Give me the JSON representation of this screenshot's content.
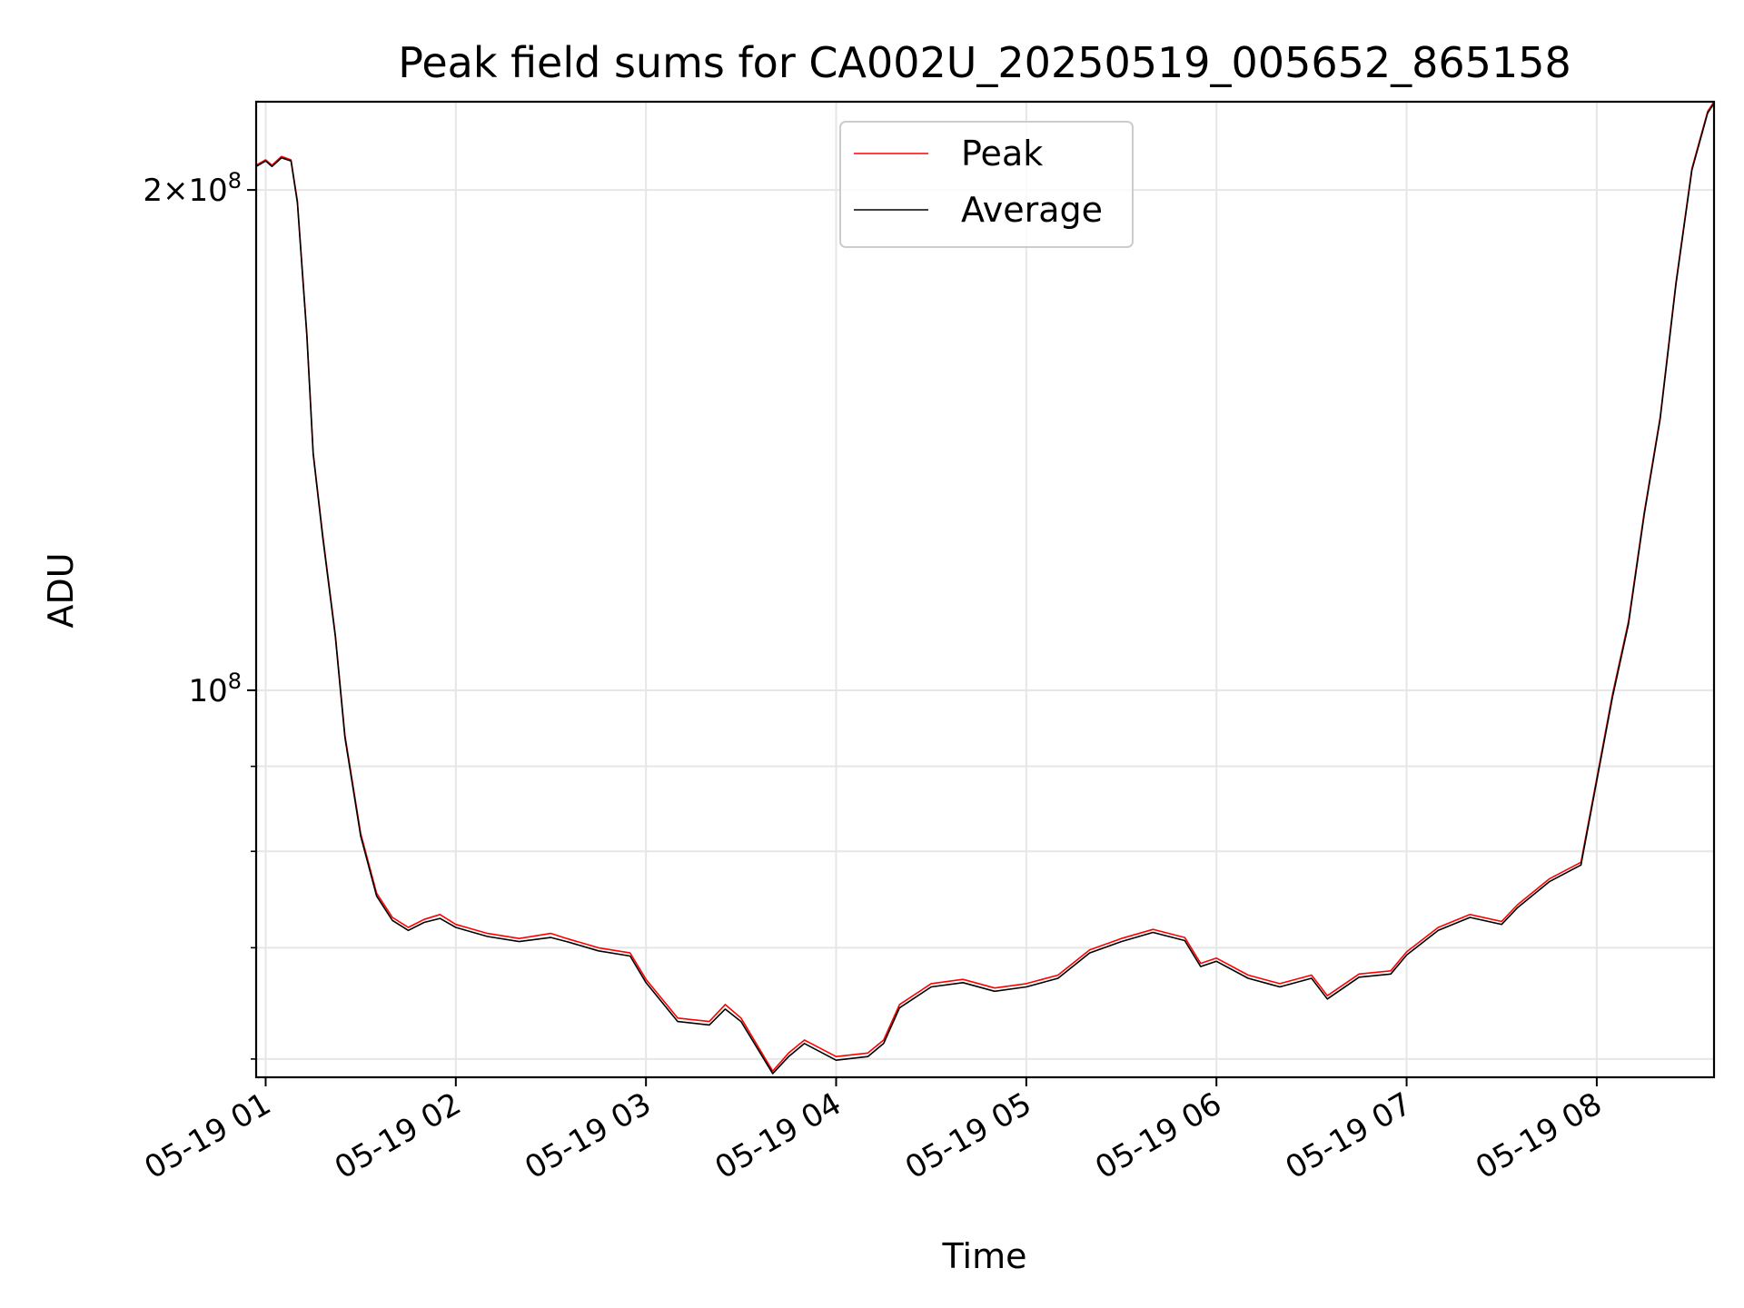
{
  "chart_data": {
    "type": "line",
    "title": "Peak field sums for CA002U_20250519_005652_865158",
    "xlabel": "Time",
    "ylabel": "ADU",
    "x_ticks": [
      "05-19 01",
      "05-19 02",
      "05-19 03",
      "05-19 04",
      "05-19 05",
      "05-19 06",
      "05-19 07",
      "05-19 08"
    ],
    "y_scale": "log",
    "y_ticks": [
      {
        "value": 100000000,
        "mantissa": "",
        "exponent": "8"
      },
      {
        "value": 200000000,
        "mantissa": "2",
        "exponent": "8"
      }
    ],
    "xlim": [
      "2025-05-19 00:57",
      "2025-05-19 08:37"
    ],
    "ylim": [
      58500000,
      226000000
    ],
    "grid": true,
    "legend_position": "upper center",
    "series": [
      {
        "name": "Peak",
        "color": "#ff0000",
        "points": [
          [
            "2025-05-19 00:57",
            207000000
          ],
          [
            "2025-05-19 01:00",
            208500000
          ],
          [
            "2025-05-19 01:02",
            207000000
          ],
          [
            "2025-05-19 01:05",
            209500000
          ],
          [
            "2025-05-19 01:08",
            208500000
          ],
          [
            "2025-05-19 01:10",
            197000000
          ],
          [
            "2025-05-19 01:13",
            164000000
          ],
          [
            "2025-05-19 01:15",
            139000000
          ],
          [
            "2025-05-19 01:18",
            124000000
          ],
          [
            "2025-05-19 01:22",
            108000000
          ],
          [
            "2025-05-19 01:25",
            94000000
          ],
          [
            "2025-05-19 01:30",
            82000000
          ],
          [
            "2025-05-19 01:35",
            75500000
          ],
          [
            "2025-05-19 01:40",
            73000000
          ],
          [
            "2025-05-19 01:45",
            72000000
          ],
          [
            "2025-05-19 01:50",
            72800000
          ],
          [
            "2025-05-19 01:55",
            73300000
          ],
          [
            "2025-05-19 02:00",
            72300000
          ],
          [
            "2025-05-19 02:10",
            71400000
          ],
          [
            "2025-05-19 02:20",
            70900000
          ],
          [
            "2025-05-19 02:30",
            71400000
          ],
          [
            "2025-05-19 02:35",
            70900000
          ],
          [
            "2025-05-19 02:45",
            70000000
          ],
          [
            "2025-05-19 02:55",
            69500000
          ],
          [
            "2025-05-19 03:00",
            67000000
          ],
          [
            "2025-05-19 03:10",
            63500000
          ],
          [
            "2025-05-19 03:20",
            63200000
          ],
          [
            "2025-05-19 03:25",
            64700000
          ],
          [
            "2025-05-19 03:30",
            63500000
          ],
          [
            "2025-05-19 03:40",
            59000000
          ],
          [
            "2025-05-19 03:45",
            60500000
          ],
          [
            "2025-05-19 03:50",
            61600000
          ],
          [
            "2025-05-19 04:00",
            60200000
          ],
          [
            "2025-05-19 04:10",
            60500000
          ],
          [
            "2025-05-19 04:15",
            61600000
          ],
          [
            "2025-05-19 04:20",
            64700000
          ],
          [
            "2025-05-19 04:30",
            66600000
          ],
          [
            "2025-05-19 04:40",
            67000000
          ],
          [
            "2025-05-19 04:50",
            66200000
          ],
          [
            "2025-05-19 05:00",
            66600000
          ],
          [
            "2025-05-19 05:10",
            67400000
          ],
          [
            "2025-05-19 05:20",
            69800000
          ],
          [
            "2025-05-19 05:30",
            70900000
          ],
          [
            "2025-05-19 05:40",
            71800000
          ],
          [
            "2025-05-19 05:50",
            71000000
          ],
          [
            "2025-05-19 05:55",
            68500000
          ],
          [
            "2025-05-19 06:00",
            69000000
          ],
          [
            "2025-05-19 06:10",
            67400000
          ],
          [
            "2025-05-19 06:20",
            66600000
          ],
          [
            "2025-05-19 06:30",
            67400000
          ],
          [
            "2025-05-19 06:35",
            65500000
          ],
          [
            "2025-05-19 06:45",
            67500000
          ],
          [
            "2025-05-19 06:55",
            67800000
          ],
          [
            "2025-05-19 07:00",
            69600000
          ],
          [
            "2025-05-19 07:10",
            72000000
          ],
          [
            "2025-05-19 07:20",
            73300000
          ],
          [
            "2025-05-19 07:30",
            72600000
          ],
          [
            "2025-05-19 07:35",
            74300000
          ],
          [
            "2025-05-19 07:45",
            77000000
          ],
          [
            "2025-05-19 07:55",
            78800000
          ],
          [
            "2025-05-19 08:00",
            88500000
          ],
          [
            "2025-05-19 08:05",
            99500000
          ],
          [
            "2025-05-19 08:10",
            110000000
          ],
          [
            "2025-05-19 08:15",
            128000000
          ],
          [
            "2025-05-19 08:20",
            146000000
          ],
          [
            "2025-05-19 08:25",
            176000000
          ],
          [
            "2025-05-19 08:30",
            206000000
          ],
          [
            "2025-05-19 08:35",
            223000000
          ],
          [
            "2025-05-19 08:37",
            226000000
          ]
        ]
      },
      {
        "name": "Average",
        "color": "#000000",
        "points": [
          [
            "2025-05-19 00:57",
            206600000
          ],
          [
            "2025-05-19 01:00",
            208200000
          ],
          [
            "2025-05-19 01:02",
            206600000
          ],
          [
            "2025-05-19 01:05",
            209100000
          ],
          [
            "2025-05-19 01:08",
            208200000
          ],
          [
            "2025-05-19 01:10",
            196500000
          ],
          [
            "2025-05-19 01:13",
            163500000
          ],
          [
            "2025-05-19 01:15",
            138700000
          ],
          [
            "2025-05-19 01:18",
            123600000
          ],
          [
            "2025-05-19 01:22",
            107700000
          ],
          [
            "2025-05-19 01:25",
            93700000
          ],
          [
            "2025-05-19 01:30",
            81700000
          ],
          [
            "2025-05-19 01:35",
            75200000
          ],
          [
            "2025-05-19 01:40",
            72700000
          ],
          [
            "2025-05-19 01:45",
            71700000
          ],
          [
            "2025-05-19 01:50",
            72500000
          ],
          [
            "2025-05-19 01:55",
            72900000
          ],
          [
            "2025-05-19 02:00",
            72000000
          ],
          [
            "2025-05-19 02:10",
            71100000
          ],
          [
            "2025-05-19 02:20",
            70600000
          ],
          [
            "2025-05-19 02:30",
            71000000
          ],
          [
            "2025-05-19 02:35",
            70600000
          ],
          [
            "2025-05-19 02:45",
            69700000
          ],
          [
            "2025-05-19 02:55",
            69200000
          ],
          [
            "2025-05-19 03:00",
            66700000
          ],
          [
            "2025-05-19 03:10",
            63200000
          ],
          [
            "2025-05-19 03:20",
            62900000
          ],
          [
            "2025-05-19 03:25",
            64300000
          ],
          [
            "2025-05-19 03:30",
            63200000
          ],
          [
            "2025-05-19 03:40",
            58800000
          ],
          [
            "2025-05-19 03:45",
            60200000
          ],
          [
            "2025-05-19 03:50",
            61300000
          ],
          [
            "2025-05-19 04:00",
            59900000
          ],
          [
            "2025-05-19 04:10",
            60200000
          ],
          [
            "2025-05-19 04:15",
            61300000
          ],
          [
            "2025-05-19 04:20",
            64400000
          ],
          [
            "2025-05-19 04:30",
            66300000
          ],
          [
            "2025-05-19 04:40",
            66700000
          ],
          [
            "2025-05-19 04:50",
            65900000
          ],
          [
            "2025-05-19 05:00",
            66300000
          ],
          [
            "2025-05-19 05:10",
            67100000
          ],
          [
            "2025-05-19 05:20",
            69500000
          ],
          [
            "2025-05-19 05:30",
            70600000
          ],
          [
            "2025-05-19 05:40",
            71500000
          ],
          [
            "2025-05-19 05:50",
            70700000
          ],
          [
            "2025-05-19 05:55",
            68200000
          ],
          [
            "2025-05-19 06:00",
            68700000
          ],
          [
            "2025-05-19 06:10",
            67100000
          ],
          [
            "2025-05-19 06:20",
            66300000
          ],
          [
            "2025-05-19 06:30",
            67100000
          ],
          [
            "2025-05-19 06:35",
            65200000
          ],
          [
            "2025-05-19 06:45",
            67200000
          ],
          [
            "2025-05-19 06:55",
            67500000
          ],
          [
            "2025-05-19 07:00",
            69300000
          ],
          [
            "2025-05-19 07:10",
            71700000
          ],
          [
            "2025-05-19 07:20",
            73000000
          ],
          [
            "2025-05-19 07:30",
            72300000
          ],
          [
            "2025-05-19 07:35",
            74000000
          ],
          [
            "2025-05-19 07:45",
            76700000
          ],
          [
            "2025-05-19 07:55",
            78500000
          ],
          [
            "2025-05-19 08:00",
            88200000
          ],
          [
            "2025-05-19 08:05",
            99100000
          ],
          [
            "2025-05-19 08:10",
            109600000
          ],
          [
            "2025-05-19 08:15",
            127600000
          ],
          [
            "2025-05-19 08:20",
            145600000
          ],
          [
            "2025-05-19 08:25",
            175500000
          ],
          [
            "2025-05-19 08:30",
            205500000
          ],
          [
            "2025-05-19 08:35",
            222500000
          ],
          [
            "2025-05-19 08:37",
            225500000
          ]
        ]
      }
    ]
  }
}
